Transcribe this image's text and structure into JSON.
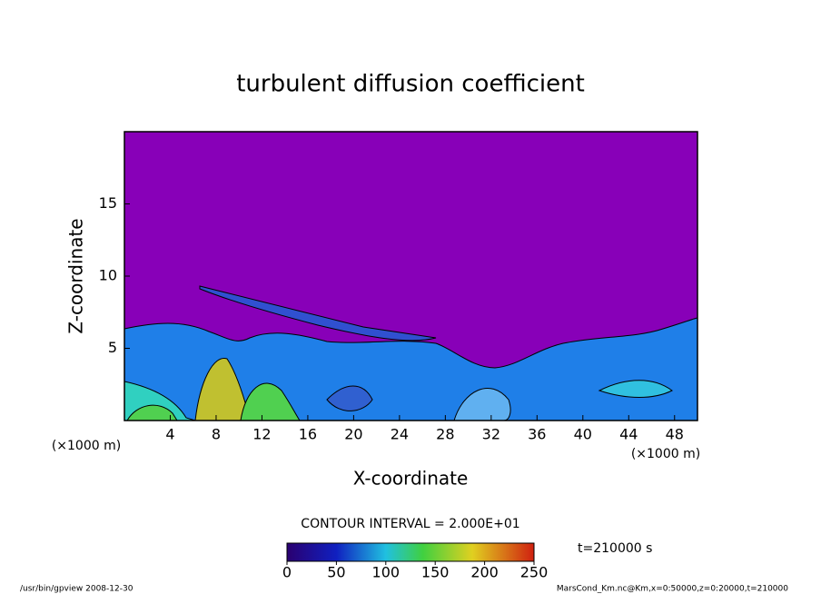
{
  "chart_data": {
    "type": "contour",
    "title": "turbulent diffusion coefficient",
    "xlabel": "X-coordinate",
    "ylabel": "Z-coordinate",
    "x_unit": "(×1000 m)",
    "y_unit": "(×1000 m)",
    "xlim": [
      0,
      50
    ],
    "xticks": [
      4,
      8,
      12,
      16,
      20,
      24,
      28,
      32,
      36,
      40,
      44,
      48
    ],
    "ylim": [
      0,
      20
    ],
    "yticks": [
      5,
      10,
      15
    ],
    "contour_interval": "CONTOUR INTERVAL = 2.000E+01",
    "colorbar": {
      "lim": [
        0,
        250
      ],
      "ticks": [
        0,
        50,
        100,
        150,
        200,
        250
      ]
    },
    "time_label": "t=210000 s",
    "footer_left": "/usr/bin/gpview   2008-12-30",
    "footer_right": "MarsCond_Km.nc@Km,x=0:50000,z=0:20000,t=210000"
  }
}
